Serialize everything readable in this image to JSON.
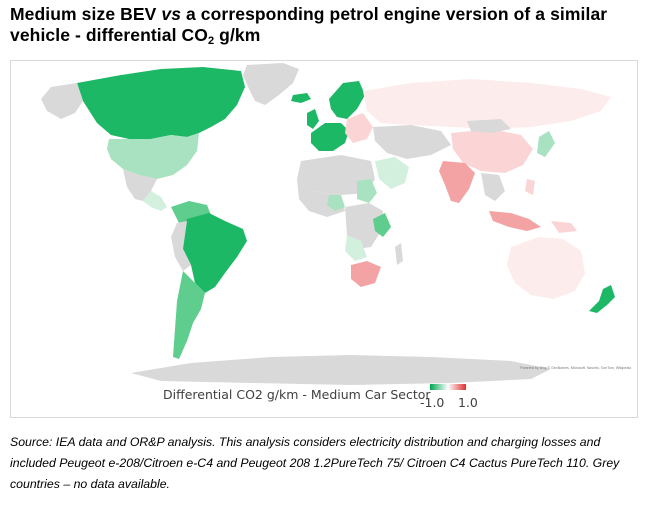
{
  "title": {
    "line1": "Medium size BEV ",
    "vs": "vs",
    "line1_rest": " a corresponding petrol engine version of a similar",
    "line2": "vehicle - differential CO",
    "subscript": "2",
    "line2_rest": " g/km"
  },
  "legend": {
    "title": "Differential CO2 g/km - Medium Car Sector",
    "min_label": "-1.0",
    "max_label": "1.0",
    "low_color": "#00a651",
    "high_color": "#e03030"
  },
  "attribution": "Powered by Bing © GeoNames, Microsoft, Navinfo, TomTom, Wikipedia",
  "source": "Source: IEA data and OR&P analysis. This analysis considers electricity distribution and charging losses and included Peugeot e-208/Citroen e-C4 and Peugeot 208 1.2PureTech 75/ Citroen C4 Cactus PureTech 110. Grey countries – no data available.",
  "colors": {
    "no_data": "#d9d9d9",
    "strong_green": "#1db866",
    "mid_green": "#5fcd8d",
    "light_green": "#a8e2c0",
    "pale_green": "#d3f0de",
    "light_red": "#fbd5d5",
    "mid_red": "#f3a3a3",
    "pale_red": "#fdecec"
  }
}
